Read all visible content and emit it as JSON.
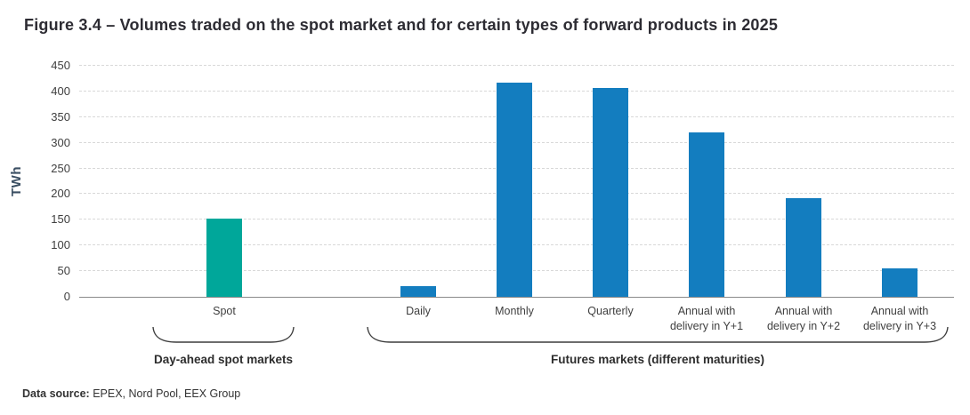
{
  "title": "Figure 3.4 – Volumes traded on the spot market and for certain types of forward products in 2025",
  "footer": {
    "label": "Data source:",
    "text": " EPEX, Nord Pool, EEX Group"
  },
  "chart_data": {
    "type": "bar",
    "title": "Figure 3.4 – Volumes traded on the spot market and for certain types of forward products in 2025",
    "xlabel": "",
    "ylabel": "TWh",
    "ylim": [
      0,
      450
    ],
    "yticks": [
      0,
      50,
      100,
      150,
      200,
      250,
      300,
      350,
      400,
      450
    ],
    "grid": "horizontal-dashed",
    "legend_position": "none",
    "categories": [
      "Spot",
      "Daily",
      "Monthly",
      "Quarterly",
      "Annual with\ndelivery in Y+1",
      "Annual with\ndelivery in Y+2",
      "Annual with\ndelivery in Y+3"
    ],
    "values": [
      153,
      21,
      417,
      406,
      321,
      192,
      55
    ],
    "bar_colors": [
      "#00A79A",
      "#137DBF",
      "#137DBF",
      "#137DBF",
      "#137DBF",
      "#137DBF",
      "#137DBF"
    ],
    "colors": {
      "spot_accent": "#00A79A",
      "futures_accent": "#137DBF"
    },
    "groups": [
      {
        "label": "Day-ahead spot markets",
        "categories": [
          "Spot"
        ]
      },
      {
        "label": "Futures markets (different maturities)",
        "categories": [
          "Daily",
          "Monthly",
          "Quarterly",
          "Annual with delivery in Y+1",
          "Annual with delivery in Y+2",
          "Annual with delivery in Y+3"
        ]
      }
    ]
  }
}
